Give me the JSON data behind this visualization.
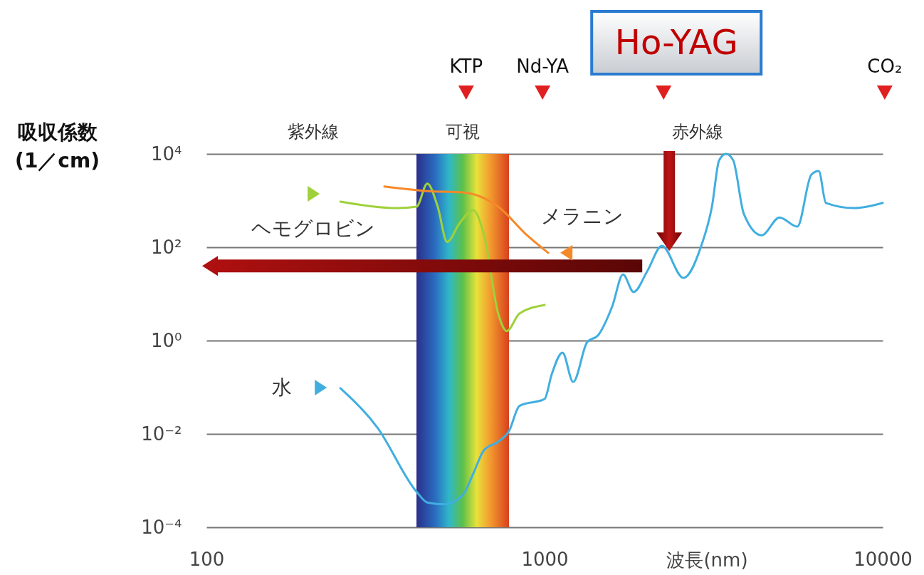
{
  "chart_data": {
    "type": "line",
    "xlabel": "波長(nm)",
    "ylabel": "吸収係数 (1／cm)",
    "log": "xy",
    "grid": "y",
    "marker": "none",
    "line_style": "solid",
    "xlim": [
      100,
      10000
    ],
    "xticks": [
      100,
      1000,
      10000
    ],
    "ylim": [
      0.0001,
      10000
    ],
    "yticks": [
      {
        "value": 0.0001,
        "label": "10⁻⁴"
      },
      {
        "value": 0.01,
        "label": "10⁻²"
      },
      {
        "value": 1,
        "label": "10⁰"
      },
      {
        "value": 100,
        "label": "10²"
      },
      {
        "value": 10000,
        "label": "10⁴"
      }
    ],
    "series": [
      {
        "name": "水",
        "color": "#41aee0",
        "x": [
          249,
          320,
          418,
          450,
          507,
          573,
          615,
          662,
          729,
          785,
          843,
          1000,
          1050,
          1130,
          1215,
          1337,
          1440,
          1585,
          1706,
          1834,
          2018,
          2223,
          2574,
          2906,
          3126,
          3283,
          3443,
          3613,
          3883,
          4385,
          4953,
          5590,
          6152,
          6468,
          6795,
          8245,
          10000
        ],
        "values": [
          0.095,
          0.0138,
          0.00058,
          0.00034,
          0.00031,
          0.00049,
          0.0014,
          0.0045,
          0.0068,
          0.0115,
          0.04,
          0.056,
          0.19,
          0.55,
          0.13,
          0.93,
          1.3,
          5.4,
          26,
          11,
          32,
          107,
          22,
          107,
          740,
          7300,
          10000,
          7300,
          520,
          180,
          435,
          276,
          3600,
          4300,
          890,
          690,
          890
        ]
      },
      {
        "name": "ヘモグロビン",
        "color": "#9fd13a",
        "x": [
          249,
          370,
          418,
          450,
          483,
          515,
          558,
          615,
          662,
          729,
          773,
          843,
          1000
        ],
        "values": [
          950,
          690,
          740,
          2300,
          740,
          130,
          310,
          620,
          182,
          3.8,
          1.6,
          3.8,
          5.8
        ]
      },
      {
        "name": "メラニン",
        "color": "#f5892a",
        "x": [
          336,
          450,
          573,
          729,
          886,
          1025
        ],
        "values": [
          2000,
          1600,
          1500,
          740,
          182,
          76
        ]
      }
    ],
    "bands": [
      {
        "axis": "x",
        "from": 418,
        "to": 785,
        "label": "可視"
      }
    ],
    "annotations": [
      "KTP",
      "Nd-YA",
      "Ho-YAG",
      "CO₂",
      "紫外線",
      "赤外線"
    ]
  }
}
